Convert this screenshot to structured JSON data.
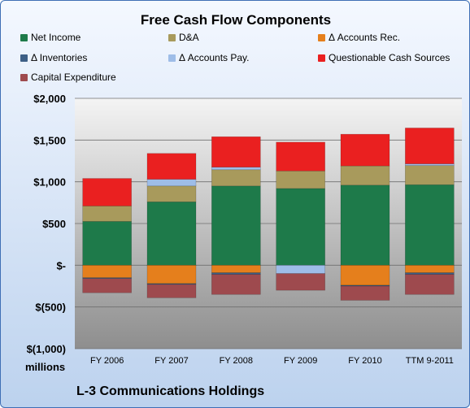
{
  "chart_data": {
    "type": "bar",
    "stacked": true,
    "title": "Free Cash Flow Components",
    "categories": [
      "FY 2006",
      "FY 2007",
      "FY 2008",
      "FY 2009",
      "FY 2010",
      "TTM 9-2011"
    ],
    "y_ticks": [
      2000,
      1500,
      1000,
      500,
      0,
      -500,
      -1000
    ],
    "y_tick_labels": [
      "$2,000",
      "$1,500",
      "$1,000",
      "$500",
      "$-",
      "$(500)",
      "$(1,000)"
    ],
    "ylim": [
      -1000,
      2000
    ],
    "unit_label": "millions",
    "grid": true,
    "legend_position": "top",
    "series": [
      {
        "name": "Net Income",
        "color": "#1e7a4a",
        "values": [
          525,
          760,
          950,
          920,
          960,
          965
        ]
      },
      {
        "name": "D&A",
        "color": "#a89a5c",
        "values": [
          185,
          190,
          195,
          210,
          230,
          230
        ]
      },
      {
        "name": "Δ Accounts Rec.",
        "color": "#e57f1c",
        "values": [
          -150,
          -220,
          -90,
          0,
          -240,
          -90
        ]
      },
      {
        "name": "Δ Inventories",
        "color": "#3d5f86",
        "values": [
          -10,
          -10,
          -20,
          0,
          -10,
          -20
        ]
      },
      {
        "name": "Δ Accounts Pay.",
        "color": "#9ebde8",
        "values": [
          0,
          80,
          30,
          -100,
          0,
          20
        ]
      },
      {
        "name": "Questionable Cash Sources",
        "color": "#ea2020",
        "values": [
          330,
          310,
          365,
          345,
          380,
          430
        ]
      },
      {
        "name": "Capital Expenditure",
        "color": "#9e4a4e",
        "values": [
          -170,
          -160,
          -240,
          -200,
          -170,
          -240
        ]
      }
    ]
  },
  "footer_title": "L-3 Communications Holdings"
}
